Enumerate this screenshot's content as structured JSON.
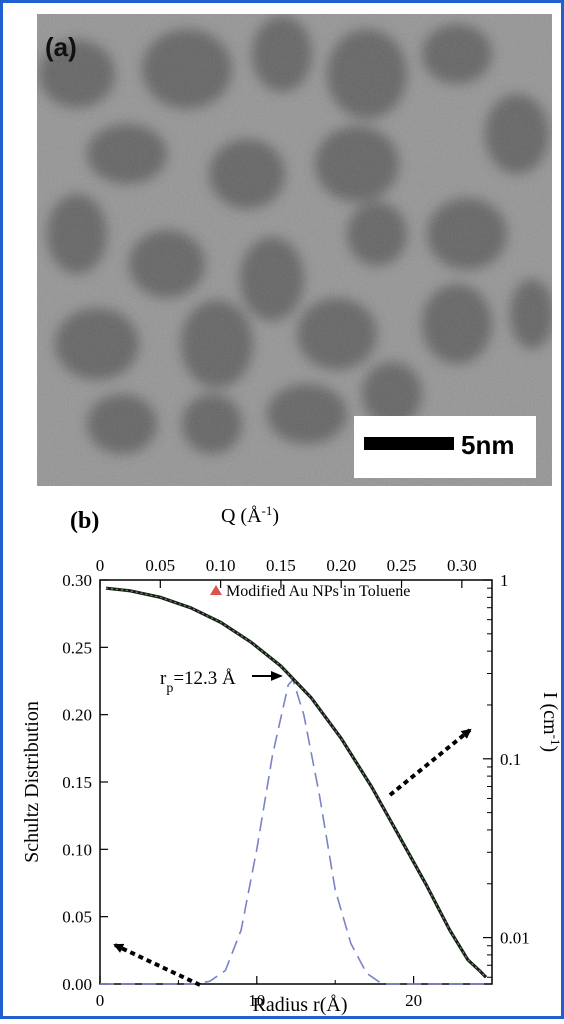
{
  "panel_a": {
    "label": "(a)",
    "scale_bar_label": "5nm"
  },
  "panel_b": {
    "label": "(b)"
  },
  "chart_data": {
    "type": "line",
    "title": "",
    "xlabel": "Radius r(Å)",
    "ylabel": "Schultz  Distribution",
    "x2label": "Q (Å-1)",
    "y2label": "I (cm-1)",
    "xlim": [
      0,
      25
    ],
    "ylim": [
      0,
      0.3
    ],
    "x2lim": [
      0,
      0.325
    ],
    "y2lim": [
      0.0055,
      1.0
    ],
    "y2scale": "log",
    "xticks": [
      "0",
      "10",
      "20"
    ],
    "yticks": [
      "0.00",
      "0.05",
      "0.10",
      "0.15",
      "0.20",
      "0.25",
      "0.30"
    ],
    "x2ticks": [
      "0",
      "0.05",
      "0.10",
      "0.15",
      "0.20",
      "0.25",
      "0.30"
    ],
    "y2ticks": [
      "1",
      "0.1",
      "0.01"
    ],
    "grid": false,
    "legend": {
      "position": "top-right",
      "entries": [
        "Modified Au NPs in Toluene"
      ],
      "marker_color": "#d9534f"
    },
    "annotation": {
      "text": "rp=12.3 Å",
      "x": 12.3,
      "y": 0.228
    },
    "series": [
      {
        "axis": "left-bottom",
        "style": "dashed",
        "color": "#7a82c8",
        "x": [
          0,
          6,
          7,
          8,
          9,
          10,
          11,
          12,
          12.3,
          13,
          14,
          15,
          16,
          17,
          18,
          24.5
        ],
        "values": [
          0.0,
          0.0,
          0.002,
          0.01,
          0.04,
          0.1,
          0.17,
          0.222,
          0.226,
          0.2,
          0.14,
          0.07,
          0.03,
          0.008,
          0.0,
          0.0
        ]
      },
      {
        "name": "Modified Au NPs in Toluene",
        "axis": "top-right",
        "style": "solid",
        "color": "#1a1a1a",
        "fit_color": "#5aa05a",
        "x": [
          0.005,
          0.025,
          0.05,
          0.075,
          0.1,
          0.125,
          0.15,
          0.175,
          0.2,
          0.225,
          0.25,
          0.27,
          0.29,
          0.305,
          0.315,
          0.32
        ],
        "values": [
          0.9,
          0.87,
          0.8,
          0.7,
          0.58,
          0.45,
          0.33,
          0.22,
          0.13,
          0.07,
          0.035,
          0.02,
          0.011,
          0.0075,
          0.0065,
          0.006
        ]
      }
    ]
  }
}
